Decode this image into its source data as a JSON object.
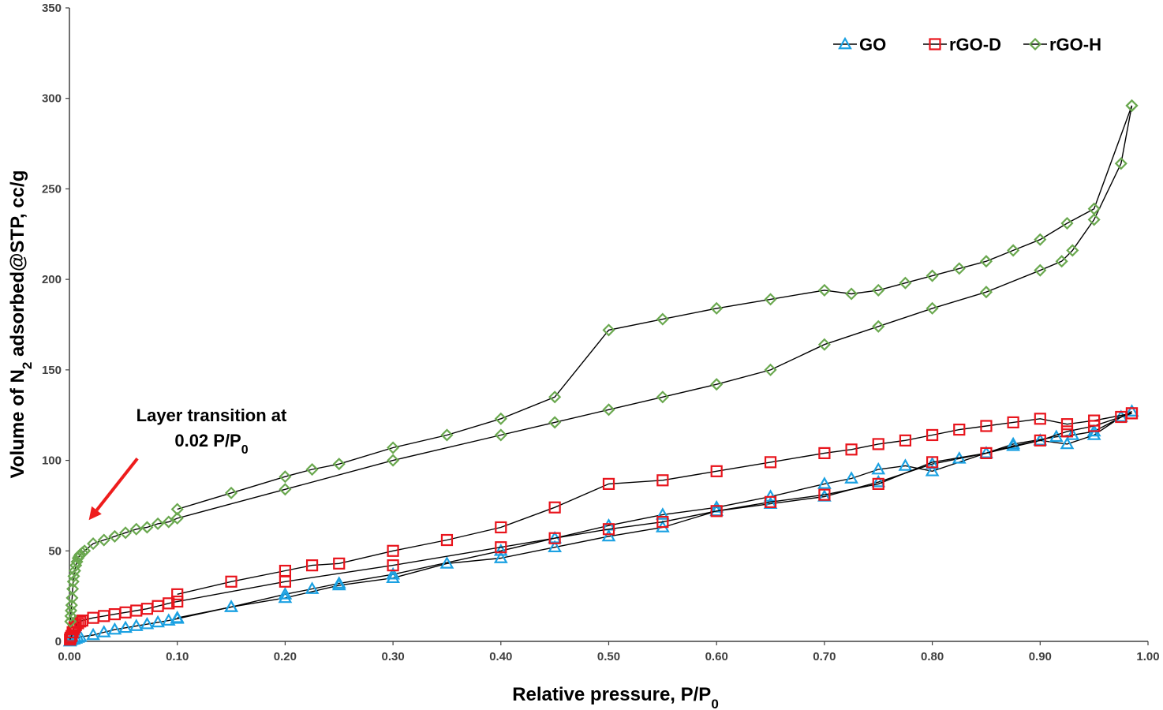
{
  "chart_data": {
    "type": "line",
    "xlabel": "Relative pressure, P/P0",
    "ylabel": "Volume of N2 adsorbed@STP, cc/g",
    "xlim": [
      0,
      1
    ],
    "ylim": [
      0,
      350
    ],
    "x_ticks": [
      "0.00",
      "0.10",
      "0.20",
      "0.30",
      "0.40",
      "0.50",
      "0.60",
      "0.70",
      "0.80",
      "0.90",
      "1.00"
    ],
    "y_ticks": [
      "0",
      "50",
      "100",
      "150",
      "200",
      "250",
      "300",
      "350"
    ],
    "grid": false,
    "legend_position": "top-right",
    "annotation": {
      "line1": "Layer transition at",
      "line2": "0.02 P/P0",
      "arrow_from": [
        0.063,
        101
      ],
      "arrow_to": [
        0.018,
        67
      ]
    },
    "series": [
      {
        "name": "GO",
        "color": "#1BA1E2",
        "marker": "triangle",
        "adsorption": [
          [
            0.0005,
            0
          ],
          [
            0.001,
            0.5
          ],
          [
            0.002,
            0.8
          ],
          [
            0.004,
            1
          ],
          [
            0.006,
            1.5
          ],
          [
            0.008,
            2
          ],
          [
            0.01,
            2.5
          ],
          [
            0.022,
            3.5
          ],
          [
            0.032,
            5
          ],
          [
            0.042,
            6.5
          ],
          [
            0.052,
            7.5
          ],
          [
            0.062,
            8.5
          ],
          [
            0.072,
            9.5
          ],
          [
            0.082,
            10.5
          ],
          [
            0.092,
            11.5
          ],
          [
            0.1,
            12.5
          ],
          [
            0.15,
            19
          ],
          [
            0.2,
            24
          ],
          [
            0.25,
            31
          ],
          [
            0.3,
            35
          ],
          [
            0.35,
            43
          ],
          [
            0.4,
            46
          ],
          [
            0.45,
            52
          ],
          [
            0.5,
            58
          ],
          [
            0.55,
            63
          ],
          [
            0.6,
            72
          ],
          [
            0.65,
            76
          ],
          [
            0.7,
            80
          ],
          [
            0.75,
            88
          ],
          [
            0.8,
            98
          ],
          [
            0.825,
            101
          ],
          [
            0.85,
            104
          ],
          [
            0.875,
            108
          ],
          [
            0.9,
            111
          ],
          [
            0.925,
            109
          ],
          [
            0.95,
            114
          ],
          [
            0.975,
            124
          ],
          [
            0.985,
            127
          ]
        ],
        "desorption": [
          [
            0.985,
            127
          ],
          [
            0.95,
            116
          ],
          [
            0.93,
            114
          ],
          [
            0.915,
            113
          ],
          [
            0.875,
            109
          ],
          [
            0.8,
            94
          ],
          [
            0.775,
            97
          ],
          [
            0.75,
            95
          ],
          [
            0.725,
            90
          ],
          [
            0.7,
            87
          ],
          [
            0.65,
            80
          ],
          [
            0.6,
            74
          ],
          [
            0.55,
            70
          ],
          [
            0.5,
            64
          ],
          [
            0.45,
            57
          ],
          [
            0.4,
            50
          ],
          [
            0.3,
            37
          ],
          [
            0.25,
            32
          ],
          [
            0.225,
            29
          ],
          [
            0.2,
            26
          ],
          [
            0.15,
            19
          ],
          [
            0.1,
            13
          ]
        ]
      },
      {
        "name": "rGO-D",
        "color": "#E8141C",
        "marker": "square",
        "adsorption": [
          [
            0.0005,
            1
          ],
          [
            0.001,
            2
          ],
          [
            0.002,
            3
          ],
          [
            0.003,
            5
          ],
          [
            0.004,
            7
          ],
          [
            0.005,
            8
          ],
          [
            0.006,
            9
          ],
          [
            0.008,
            10
          ],
          [
            0.01,
            11
          ],
          [
            0.012,
            11.5
          ],
          [
            0.022,
            13
          ],
          [
            0.032,
            14
          ],
          [
            0.042,
            15
          ],
          [
            0.052,
            16
          ],
          [
            0.062,
            17
          ],
          [
            0.072,
            18
          ],
          [
            0.082,
            19.5
          ],
          [
            0.092,
            21
          ],
          [
            0.1,
            22
          ],
          [
            0.2,
            33
          ],
          [
            0.3,
            42
          ],
          [
            0.4,
            52
          ],
          [
            0.45,
            57
          ],
          [
            0.5,
            62
          ],
          [
            0.55,
            66
          ],
          [
            0.6,
            72
          ],
          [
            0.65,
            77
          ],
          [
            0.7,
            81
          ],
          [
            0.75,
            87
          ],
          [
            0.8,
            99
          ],
          [
            0.85,
            104
          ],
          [
            0.9,
            111
          ],
          [
            0.925,
            116
          ],
          [
            0.95,
            119
          ],
          [
            0.975,
            124
          ],
          [
            0.985,
            126
          ]
        ],
        "desorption": [
          [
            0.985,
            126
          ],
          [
            0.95,
            122
          ],
          [
            0.925,
            120
          ],
          [
            0.9,
            123
          ],
          [
            0.875,
            121
          ],
          [
            0.85,
            119
          ],
          [
            0.825,
            117
          ],
          [
            0.8,
            114
          ],
          [
            0.775,
            111
          ],
          [
            0.75,
            109
          ],
          [
            0.725,
            106
          ],
          [
            0.7,
            104
          ],
          [
            0.65,
            99
          ],
          [
            0.6,
            94
          ],
          [
            0.55,
            89
          ],
          [
            0.5,
            87
          ],
          [
            0.45,
            74
          ],
          [
            0.4,
            63
          ],
          [
            0.35,
            56
          ],
          [
            0.3,
            50
          ],
          [
            0.25,
            43
          ],
          [
            0.225,
            42
          ],
          [
            0.2,
            39
          ],
          [
            0.15,
            33
          ],
          [
            0.1,
            26
          ]
        ]
      },
      {
        "name": "rGO-H",
        "color": "#6AA84F",
        "marker": "diamond",
        "adsorption": [
          [
            0.001,
            11
          ],
          [
            0.0012,
            14
          ],
          [
            0.0015,
            17
          ],
          [
            0.002,
            20
          ],
          [
            0.0025,
            24
          ],
          [
            0.003,
            29
          ],
          [
            0.0035,
            33
          ],
          [
            0.004,
            36
          ],
          [
            0.005,
            39
          ],
          [
            0.006,
            42
          ],
          [
            0.007,
            44
          ],
          [
            0.008,
            46
          ],
          [
            0.009,
            47
          ],
          [
            0.01,
            48
          ],
          [
            0.012,
            49
          ],
          [
            0.014,
            50
          ],
          [
            0.022,
            54
          ],
          [
            0.032,
            56
          ],
          [
            0.042,
            58
          ],
          [
            0.052,
            60
          ],
          [
            0.062,
            62
          ],
          [
            0.072,
            63
          ],
          [
            0.082,
            65
          ],
          [
            0.092,
            66
          ],
          [
            0.1,
            68
          ],
          [
            0.2,
            84
          ],
          [
            0.3,
            100
          ],
          [
            0.4,
            114
          ],
          [
            0.45,
            121
          ],
          [
            0.5,
            128
          ],
          [
            0.55,
            135
          ],
          [
            0.6,
            142
          ],
          [
            0.65,
            150
          ],
          [
            0.7,
            164
          ],
          [
            0.75,
            174
          ],
          [
            0.8,
            184
          ],
          [
            0.85,
            193
          ],
          [
            0.9,
            205
          ],
          [
            0.92,
            210
          ],
          [
            0.93,
            216
          ],
          [
            0.95,
            233
          ],
          [
            0.975,
            264
          ],
          [
            0.985,
            296
          ]
        ],
        "desorption": [
          [
            0.985,
            296
          ],
          [
            0.95,
            239
          ],
          [
            0.925,
            231
          ],
          [
            0.9,
            222
          ],
          [
            0.875,
            216
          ],
          [
            0.85,
            210
          ],
          [
            0.825,
            206
          ],
          [
            0.8,
            202
          ],
          [
            0.775,
            198
          ],
          [
            0.75,
            194
          ],
          [
            0.725,
            192
          ],
          [
            0.7,
            194
          ],
          [
            0.65,
            189
          ],
          [
            0.6,
            184
          ],
          [
            0.55,
            178
          ],
          [
            0.5,
            172
          ],
          [
            0.45,
            135
          ],
          [
            0.4,
            123
          ],
          [
            0.35,
            114
          ],
          [
            0.3,
            107
          ],
          [
            0.25,
            98
          ],
          [
            0.225,
            95
          ],
          [
            0.2,
            91
          ],
          [
            0.15,
            82
          ],
          [
            0.1,
            73
          ]
        ]
      }
    ]
  }
}
